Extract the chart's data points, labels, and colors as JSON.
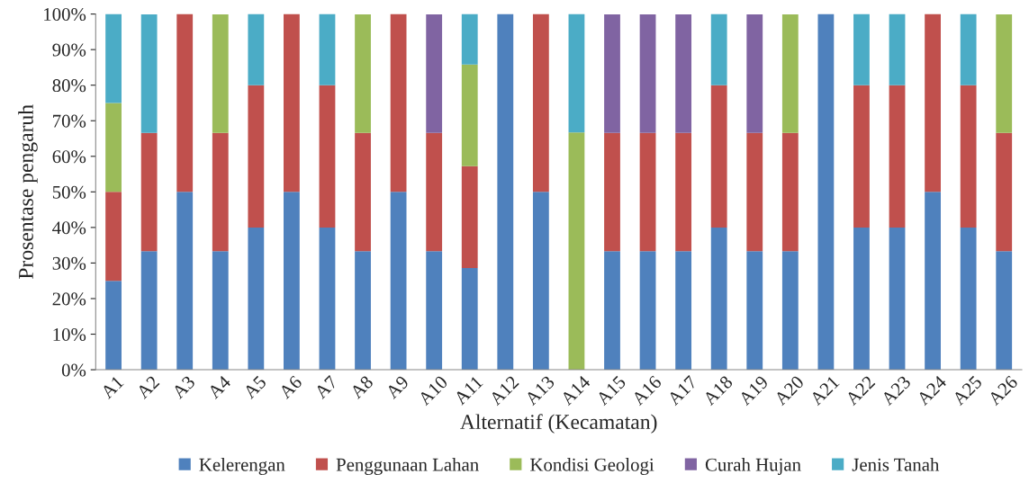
{
  "chart_data": {
    "type": "bar",
    "stacked": true,
    "xlabel": "Alternatif (Kecamatan)",
    "ylabel": "Prosentase pengaruh",
    "categories": [
      "A1",
      "A2",
      "A3",
      "A4",
      "A5",
      "A6",
      "A7",
      "A8",
      "A9",
      "A10",
      "A11",
      "A12",
      "A13",
      "A14",
      "A15",
      "A16",
      "A17",
      "A18",
      "A19",
      "A20",
      "A21",
      "A22",
      "A23",
      "A24",
      "A25",
      "A26"
    ],
    "series": [
      {
        "name": "Kelerengan",
        "color": "#4f81bd",
        "values": [
          25,
          33.3,
          50,
          33.3,
          40,
          50,
          40,
          33.3,
          50,
          33.3,
          28.6,
          100,
          50,
          0,
          33.3,
          33.3,
          33.3,
          40,
          33.3,
          33.3,
          100,
          40,
          40,
          50,
          40,
          33.3
        ]
      },
      {
        "name": "Penggunaan Lahan",
        "color": "#c0504d",
        "values": [
          25,
          33.3,
          50,
          33.3,
          40,
          50,
          40,
          33.3,
          50,
          33.3,
          28.6,
          0,
          50,
          0,
          33.3,
          33.3,
          33.3,
          40,
          33.3,
          33.3,
          0,
          40,
          40,
          50,
          40,
          33.3
        ]
      },
      {
        "name": "Kondisi Geologi",
        "color": "#9bbb59",
        "values": [
          25,
          0,
          0,
          33.3,
          0,
          0,
          0,
          33.3,
          0,
          0,
          28.6,
          0,
          0,
          66.7,
          0,
          0,
          0,
          0,
          0,
          33.3,
          0,
          0,
          0,
          0,
          0,
          33.3
        ]
      },
      {
        "name": "Curah Hujan",
        "color": "#8064a2",
        "values": [
          0,
          0,
          0,
          0,
          0,
          0,
          0,
          0,
          0,
          33.3,
          0,
          0,
          0,
          0,
          33.3,
          33.3,
          33.3,
          0,
          33.3,
          0,
          0,
          0,
          0,
          0,
          0,
          0
        ]
      },
      {
        "name": "Jenis Tanah",
        "color": "#4bacc6",
        "values": [
          25,
          33.3,
          0,
          0,
          20,
          0,
          20,
          0,
          0,
          0,
          14.2,
          0,
          0,
          33.3,
          0,
          0,
          0,
          20,
          0,
          0,
          0,
          20,
          20,
          0,
          20,
          0
        ]
      }
    ],
    "ylim": [
      0,
      100
    ],
    "yticks": [
      {
        "value": 0,
        "label": "0%"
      },
      {
        "value": 10,
        "label": "10%"
      },
      {
        "value": 20,
        "label": "20%"
      },
      {
        "value": 30,
        "label": "30%"
      },
      {
        "value": 40,
        "label": "40%"
      },
      {
        "value": 50,
        "label": "50%"
      },
      {
        "value": 60,
        "label": "60%"
      },
      {
        "value": 70,
        "label": "70%"
      },
      {
        "value": 80,
        "label": "80%"
      },
      {
        "value": 90,
        "label": "90%"
      },
      {
        "value": 100,
        "label": "100%"
      }
    ],
    "grid": false,
    "legend": "bottom"
  }
}
